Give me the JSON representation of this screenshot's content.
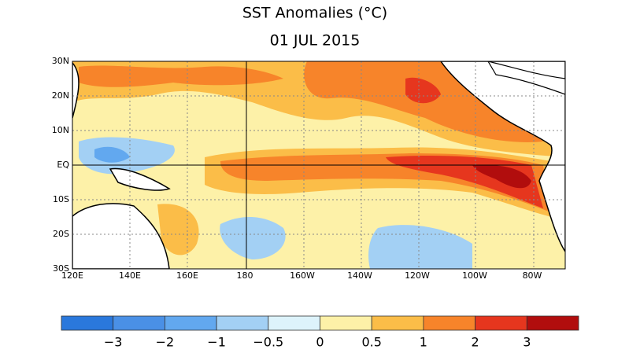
{
  "title": "SST Anomalies (°C)",
  "date": "01 JUL 2015",
  "map": {
    "lat_labels": [
      "30N",
      "20N",
      "10N",
      "EQ",
      "10S",
      "20S",
      "30S"
    ],
    "lon_labels": [
      "120E",
      "140E",
      "160E",
      "180",
      "160W",
      "140W",
      "120W",
      "100W",
      "80W"
    ]
  },
  "colorbar": {
    "colors": [
      "#2a78dc",
      "#4a90e6",
      "#62a8ef",
      "#a3d0f4",
      "#ddf3fb",
      "#fdf1a8",
      "#fbbd48",
      "#f7842a",
      "#e6361e",
      "#b10d0d"
    ],
    "labels": [
      "−3",
      "−2",
      "−1",
      "−0.5",
      "0",
      "0.5",
      "1",
      "2",
      "3"
    ]
  }
}
